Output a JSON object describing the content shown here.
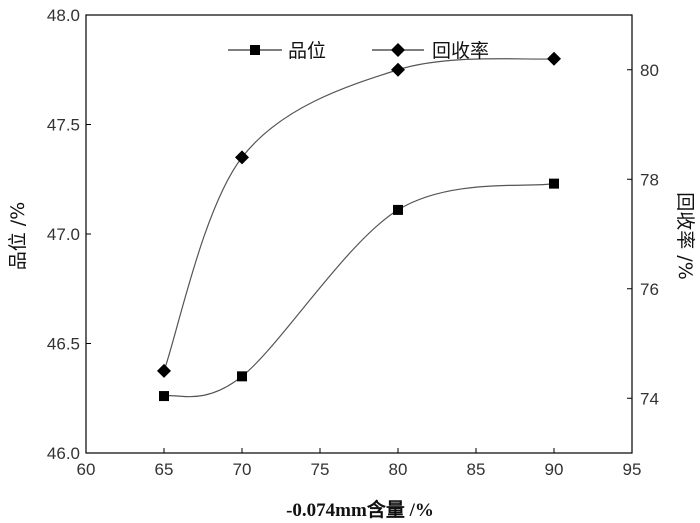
{
  "chart_data": {
    "type": "line",
    "x": [
      65,
      70,
      80,
      90
    ],
    "xlabel": "-0.074mm含量 /%",
    "xlim": [
      60,
      95
    ],
    "xticks": [
      60,
      65,
      70,
      75,
      80,
      85,
      90,
      95
    ],
    "ylabel_left": "品位 /%",
    "ylim_left": [
      46.0,
      48.0
    ],
    "yticks_left": [
      "46.0",
      "46.5",
      "47.0",
      "47.5",
      "48.0"
    ],
    "ylabel_right": "回收率 /%",
    "ylim_right": [
      73,
      81
    ],
    "yticks_right": [
      74,
      76,
      78,
      80
    ],
    "series": [
      {
        "name": "品位",
        "axis": "left",
        "marker": "square",
        "values": [
          46.26,
          46.35,
          47.11,
          47.23
        ]
      },
      {
        "name": "回收率",
        "axis": "right",
        "marker": "diamond",
        "values": [
          74.5,
          78.4,
          80.0,
          80.2
        ]
      }
    ],
    "legend_position": "top-center",
    "grid": false,
    "smooth_lines": true
  }
}
